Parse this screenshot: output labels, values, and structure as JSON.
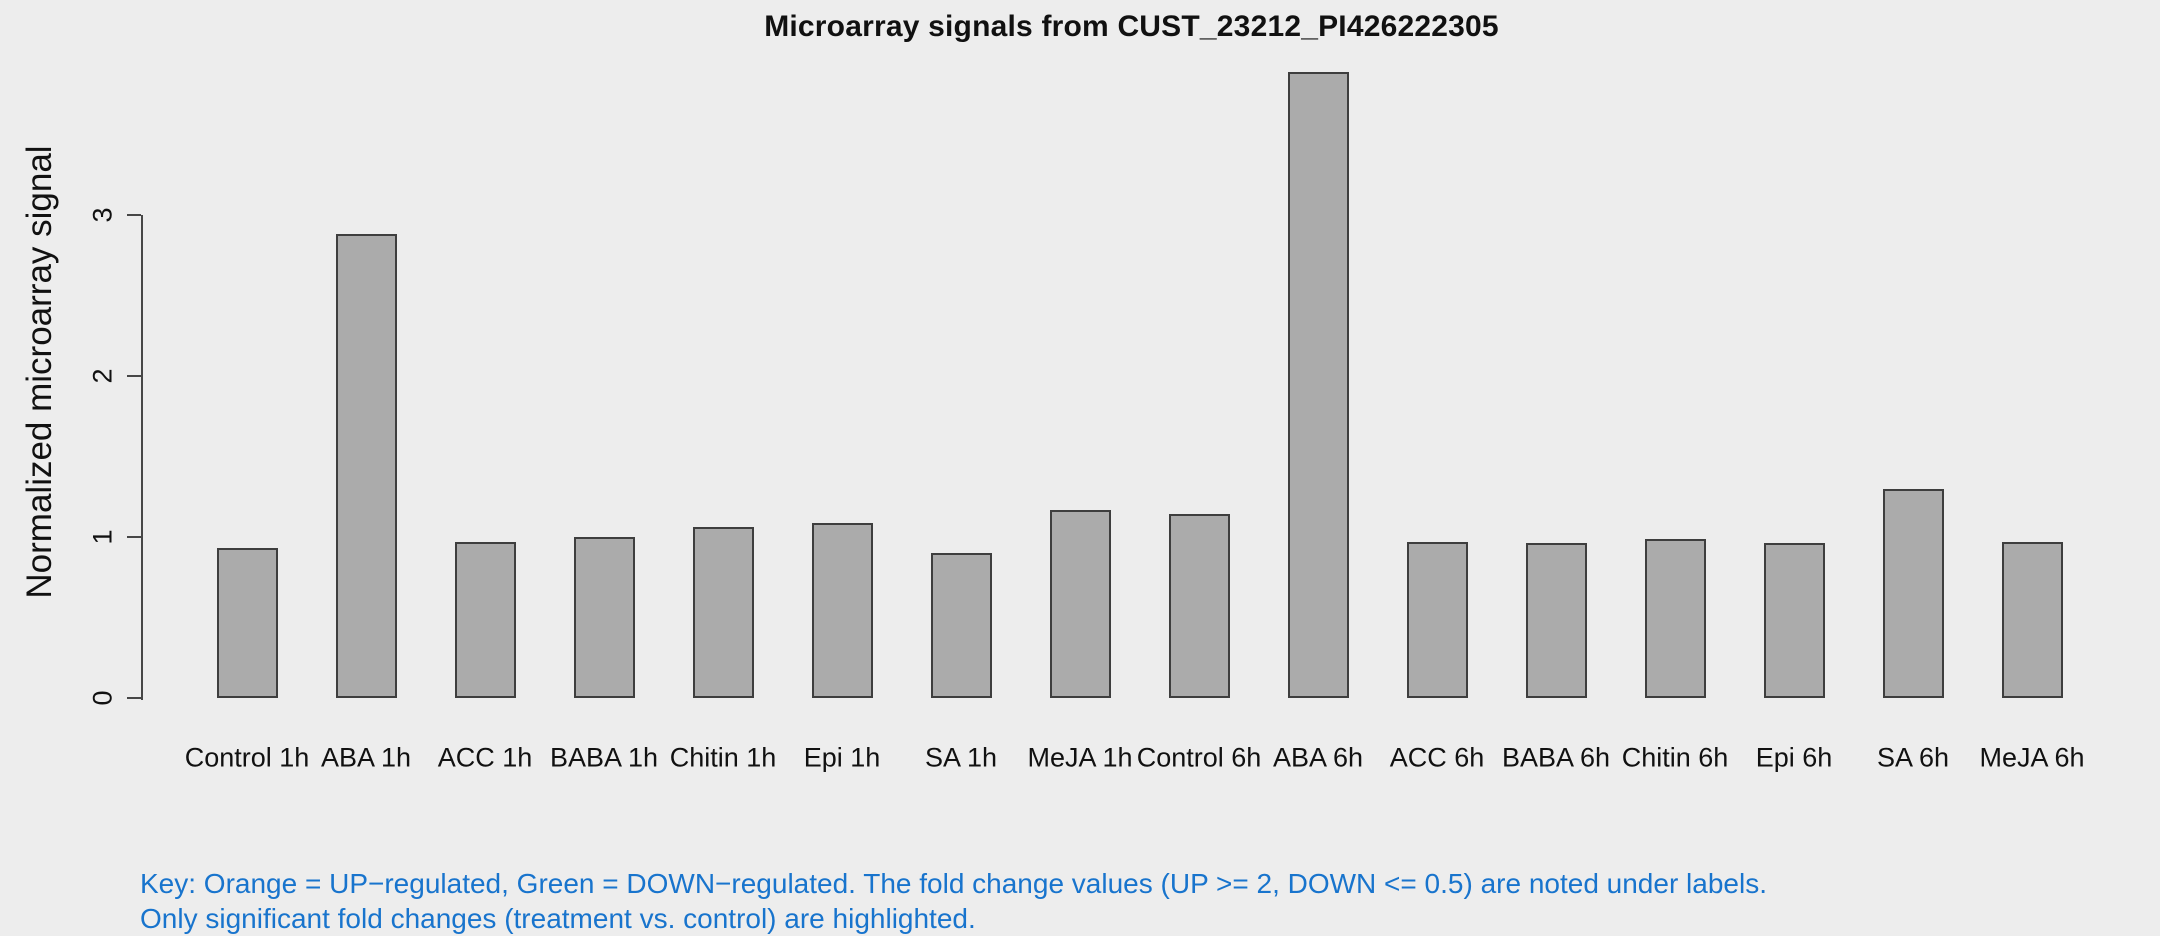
{
  "chart_data": {
    "type": "bar",
    "title": "Microarray signals from CUST_23212_PI426222305",
    "xlabel": "",
    "ylabel": "Normalized microarray signal",
    "categories": [
      "Control 1h",
      "ABA 1h",
      "ACC 1h",
      "BABA 1h",
      "Chitin 1h",
      "Epi 1h",
      "SA 1h",
      "MeJA 1h",
      "Control 6h",
      "ABA 6h",
      "ACC 6h",
      "BABA 6h",
      "Chitin 6h",
      "Epi 6h",
      "SA 6h",
      "MeJA 6h"
    ],
    "values": [
      0.93,
      2.88,
      0.97,
      1.0,
      1.06,
      1.09,
      0.9,
      1.17,
      1.14,
      3.89,
      0.97,
      0.96,
      0.99,
      0.96,
      1.3,
      0.97
    ],
    "yticks": [
      0,
      1,
      2,
      3
    ],
    "ylim": [
      0,
      3.93
    ],
    "grid": false,
    "legend_position": "none",
    "bar_fill_color": "#ABABAB",
    "bar_border_color": "#3E3E3E"
  },
  "footer": {
    "key_line1": "Key: Orange = UP−regulated, Green = DOWN−regulated. The fold change values (UP >= 2, DOWN <= 0.5) are noted under labels.",
    "key_line2": "Only significant fold changes (treatment vs. control) are highlighted.",
    "key_text_color": "#1874CD"
  },
  "colors": {
    "background": "#EDEDED",
    "axis_color": "#474747",
    "text_color": "#111111"
  }
}
